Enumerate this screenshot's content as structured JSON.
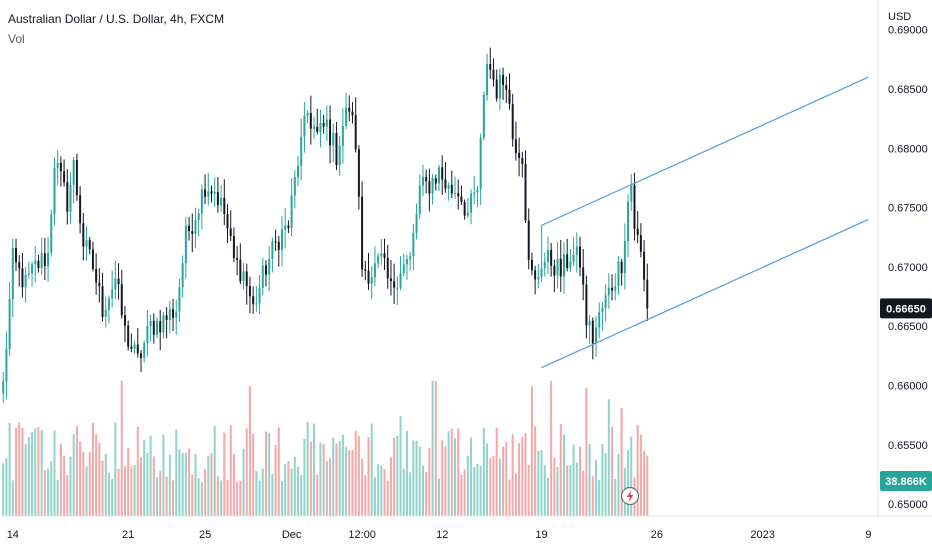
{
  "header": {
    "title": "Australian Dollar / U.S. Dollar, 4h, FXCM",
    "vol_label": "Vol"
  },
  "colors": {
    "up": "#26a69a",
    "down": "#131722",
    "vol_up": "#8fd3c9",
    "vol_down": "#f5a6a6",
    "channel": "#4a9ee0",
    "price_badge": "#131722",
    "vol_badge": "#26a69a"
  },
  "chart_data": {
    "type": "candlestick",
    "title": "Australian Dollar / U.S. Dollar, 4h, FXCM",
    "y_axis_unit": "USD",
    "ylim": [
      0.649,
      0.6925
    ],
    "y_ticks": [
      {
        "label": "0.69000",
        "value": 0.69
      },
      {
        "label": "0.68500",
        "value": 0.685
      },
      {
        "label": "0.68000",
        "value": 0.68
      },
      {
        "label": "0.67500",
        "value": 0.675
      },
      {
        "label": "0.67000",
        "value": 0.67
      },
      {
        "label": "0.66500",
        "value": 0.665
      },
      {
        "label": "0.66000",
        "value": 0.66
      },
      {
        "label": "0.65500",
        "value": 0.655
      },
      {
        "label": "0.65000",
        "value": 0.65
      }
    ],
    "x_ticks": [
      {
        "label": "14",
        "index": 3
      },
      {
        "label": "21",
        "index": 39
      },
      {
        "label": "25",
        "index": 63
      },
      {
        "label": "Dec",
        "index": 90
      },
      {
        "label": "12:00",
        "index": 112
      },
      {
        "label": "12",
        "index": 137
      },
      {
        "label": "19",
        "index": 168
      },
      {
        "label": "26",
        "index": 204
      },
      {
        "label": "2023",
        "index": 237
      },
      {
        "label": "9",
        "index": 270
      }
    ],
    "x_range": [
      -1,
      273
    ],
    "last_price": {
      "label": "0.66650",
      "value": 0.6665
    },
    "last_volume": {
      "label": "38.866K",
      "value": 38866
    },
    "vol_max": 95000,
    "anchors": [
      [
        0,
        0.66
      ],
      [
        3,
        0.6705
      ],
      [
        7,
        0.6685
      ],
      [
        10,
        0.67
      ],
      [
        14,
        0.671
      ],
      [
        16,
        0.679
      ],
      [
        20,
        0.6755
      ],
      [
        22,
        0.6785
      ],
      [
        25,
        0.672
      ],
      [
        28,
        0.67
      ],
      [
        31,
        0.6665
      ],
      [
        35,
        0.669
      ],
      [
        38,
        0.6645
      ],
      [
        42,
        0.662
      ],
      [
        46,
        0.665
      ],
      [
        50,
        0.6655
      ],
      [
        54,
        0.6665
      ],
      [
        57,
        0.6725
      ],
      [
        60,
        0.6745
      ],
      [
        63,
        0.677
      ],
      [
        66,
        0.6765
      ],
      [
        69,
        0.6745
      ],
      [
        72,
        0.6705
      ],
      [
        75,
        0.6695
      ],
      [
        78,
        0.6665
      ],
      [
        82,
        0.67
      ],
      [
        86,
        0.6725
      ],
      [
        89,
        0.6735
      ],
      [
        92,
        0.679
      ],
      [
        95,
        0.683
      ],
      [
        98,
        0.681
      ],
      [
        101,
        0.682
      ],
      [
        104,
        0.6795
      ],
      [
        106,
        0.682
      ],
      [
        108,
        0.6835
      ],
      [
        110,
        0.6805
      ],
      [
        112,
        0.67
      ],
      [
        115,
        0.6695
      ],
      [
        118,
        0.6705
      ],
      [
        121,
        0.668
      ],
      [
        124,
        0.67
      ],
      [
        127,
        0.6705
      ],
      [
        130,
        0.6765
      ],
      [
        133,
        0.677
      ],
      [
        136,
        0.678
      ],
      [
        139,
        0.6765
      ],
      [
        142,
        0.6765
      ],
      [
        145,
        0.6745
      ],
      [
        148,
        0.6765
      ],
      [
        151,
        0.6875
      ],
      [
        154,
        0.685
      ],
      [
        157,
        0.686
      ],
      [
        159,
        0.681
      ],
      [
        162,
        0.6795
      ],
      [
        164,
        0.67
      ],
      [
        166,
        0.6685
      ],
      [
        168,
        0.6705
      ],
      [
        171,
        0.6705
      ],
      [
        174,
        0.6695
      ],
      [
        177,
        0.671
      ],
      [
        180,
        0.6705
      ],
      [
        182,
        0.6655
      ],
      [
        184,
        0.664
      ],
      [
        187,
        0.6665
      ],
      [
        190,
        0.6685
      ],
      [
        193,
        0.6705
      ],
      [
        195,
        0.6755
      ],
      [
        196,
        0.677
      ],
      [
        197,
        0.6735
      ],
      [
        199,
        0.671
      ],
      [
        201,
        0.6665
      ]
    ],
    "channel_lines": [
      {
        "name": "upper",
        "points": [
          [
            168,
            0.6735
          ],
          [
            270,
            0.686
          ]
        ]
      },
      {
        "name": "lower",
        "points": [
          [
            168,
            0.6615
          ],
          [
            270,
            0.674
          ]
        ]
      },
      {
        "name": "upper-left-edge",
        "points": [
          [
            168,
            0.6735
          ],
          [
            168,
            0.67
          ]
        ]
      }
    ]
  }
}
